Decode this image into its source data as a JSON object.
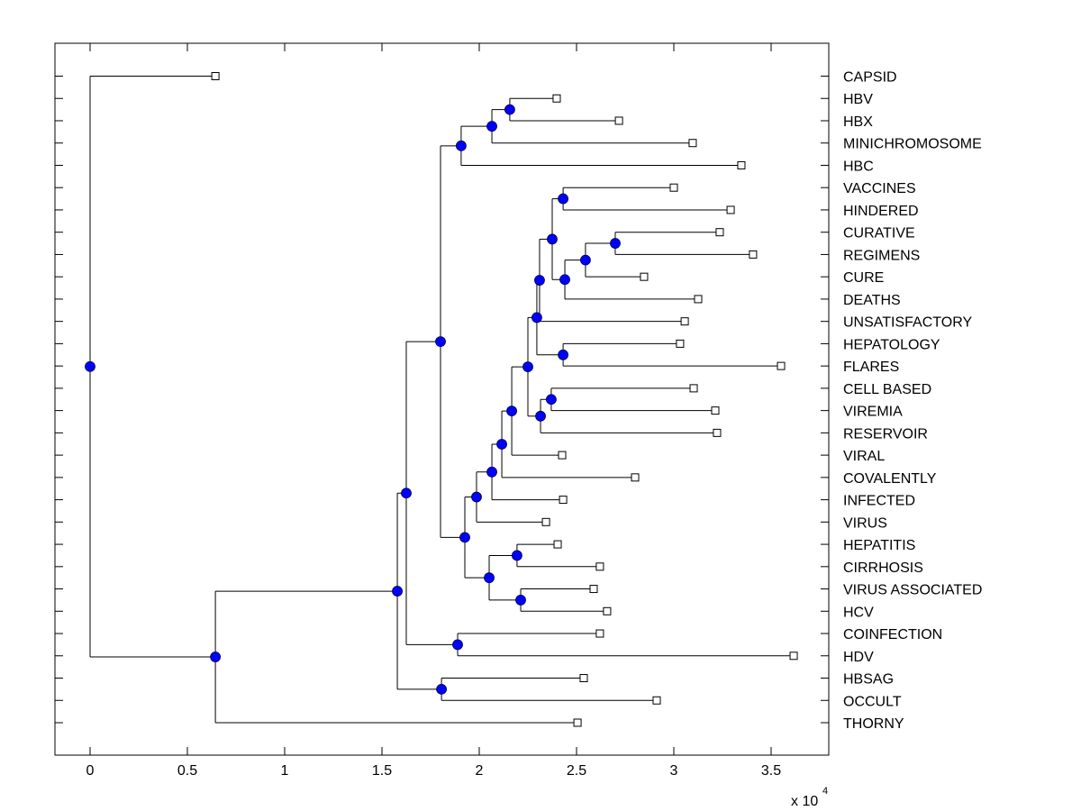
{
  "chart_data": {
    "type": "dendrogram",
    "title": "",
    "xlabel": "",
    "ylabel": "",
    "x_multiplier_label": "x 10",
    "x_multiplier_exponent": "4",
    "xlim": [
      -0.18,
      3.81
    ],
    "xticks": [
      0,
      0.5,
      1,
      1.5,
      2,
      2.5,
      3,
      3.5
    ],
    "xtick_labels": [
      "0",
      "0.5",
      "1",
      "1.5",
      "2",
      "2.5",
      "3",
      "3.5"
    ],
    "grid": false,
    "node_color": "#0000ff",
    "leaf_marker": "open-square",
    "leaves": [
      {
        "label": "CAPSID",
        "x": 0.644
      },
      {
        "label": "HBV",
        "x": 2.398
      },
      {
        "label": "HBX",
        "x": 2.718
      },
      {
        "label": "MINICHROMOSOME",
        "x": 3.097
      },
      {
        "label": "HBC",
        "x": 3.347
      },
      {
        "label": "VACCINES",
        "x": 3.0
      },
      {
        "label": "HINDERED",
        "x": 3.292
      },
      {
        "label": "CURATIVE",
        "x": 3.236
      },
      {
        "label": "REGIMENS",
        "x": 3.407
      },
      {
        "label": "CURE",
        "x": 2.847
      },
      {
        "label": "DEATHS",
        "x": 3.125
      },
      {
        "label": "UNSATISFACTORY",
        "x": 3.056
      },
      {
        "label": "HEPATOLOGY",
        "x": 3.032
      },
      {
        "label": "FLARES",
        "x": 3.551
      },
      {
        "label": "CELL BASED",
        "x": 3.102
      },
      {
        "label": "VIREMIA",
        "x": 3.213
      },
      {
        "label": "RESERVOIR",
        "x": 3.222
      },
      {
        "label": "VIRAL",
        "x": 2.426
      },
      {
        "label": "COVALENTLY",
        "x": 2.801
      },
      {
        "label": "INFECTED",
        "x": 2.431
      },
      {
        "label": "VIRUS",
        "x": 2.343
      },
      {
        "label": "HEPATITIS",
        "x": 2.403
      },
      {
        "label": "CIRRHOSIS",
        "x": 2.62
      },
      {
        "label": "VIRUS ASSOCIATED",
        "x": 2.588
      },
      {
        "label": "HCV",
        "x": 2.657
      },
      {
        "label": "COINFECTION",
        "x": 2.62
      },
      {
        "label": "HDV",
        "x": 3.616
      },
      {
        "label": "HBSAG",
        "x": 2.537
      },
      {
        "label": "OCCULT",
        "x": 2.912
      },
      {
        "label": "THORNY",
        "x": 2.505
      }
    ],
    "nodes": [
      {
        "id": "n_hbv_hbx",
        "x": 2.157,
        "children": [
          "L1",
          "L2"
        ]
      },
      {
        "id": "n_mini",
        "x": 2.065,
        "children": [
          "n_hbv_hbx",
          "L3"
        ]
      },
      {
        "id": "n_hbc",
        "x": 1.907,
        "children": [
          "n_mini",
          "L4"
        ]
      },
      {
        "id": "n_vacc",
        "x": 2.431,
        "children": [
          "L5",
          "L6"
        ]
      },
      {
        "id": "n_cur_reg",
        "x": 2.699,
        "children": [
          "L7",
          "L8"
        ]
      },
      {
        "id": "n_cure",
        "x": 2.546,
        "children": [
          "n_cur_reg",
          "L9"
        ]
      },
      {
        "id": "n_deaths",
        "x": 2.44,
        "children": [
          "n_cure",
          "L10"
        ]
      },
      {
        "id": "n_top",
        "x": 2.375,
        "children": [
          "n_vacc",
          "n_deaths"
        ]
      },
      {
        "id": "n_unsat",
        "x": 2.31,
        "children": [
          "n_top",
          "L11"
        ]
      },
      {
        "id": "n_hep_fl",
        "x": 2.431,
        "children": [
          "L12",
          "L13"
        ]
      },
      {
        "id": "n_upper",
        "x": 2.296,
        "children": [
          "n_unsat",
          "n_hep_fl"
        ]
      },
      {
        "id": "n_cell_vir",
        "x": 2.37,
        "children": [
          "L14",
          "L15"
        ]
      },
      {
        "id": "n_reservoir",
        "x": 2.315,
        "children": [
          "n_cell_vir",
          "L16"
        ]
      },
      {
        "id": "n_f",
        "x": 2.25,
        "children": [
          "n_upper",
          "n_reservoir"
        ]
      },
      {
        "id": "n_viral",
        "x": 2.167,
        "children": [
          "n_f",
          "L17"
        ]
      },
      {
        "id": "n_coval",
        "x": 2.116,
        "children": [
          "n_viral",
          "L18"
        ]
      },
      {
        "id": "n_infected",
        "x": 2.065,
        "children": [
          "n_coval",
          "L19"
        ]
      },
      {
        "id": "n_virus",
        "x": 1.986,
        "children": [
          "n_infected",
          "L20"
        ]
      },
      {
        "id": "n_hep_cir",
        "x": 2.194,
        "children": [
          "L21",
          "L22"
        ]
      },
      {
        "id": "n_va_hcv",
        "x": 2.213,
        "children": [
          "L23",
          "L24"
        ]
      },
      {
        "id": "n_hcv_grp",
        "x": 2.051,
        "children": [
          "n_hep_cir",
          "n_va_hcv"
        ]
      },
      {
        "id": "n_k",
        "x": 1.926,
        "children": [
          "n_virus",
          "n_hcv_grp"
        ]
      },
      {
        "id": "n_m",
        "x": 1.801,
        "children": [
          "n_hbc",
          "n_k"
        ]
      },
      {
        "id": "n_coinf_hdv",
        "x": 1.889,
        "children": [
          "L25",
          "L26"
        ]
      },
      {
        "id": "n_o",
        "x": 1.625,
        "children": [
          "n_m",
          "n_coinf_hdv"
        ]
      },
      {
        "id": "n_hbsag_occ",
        "x": 1.806,
        "children": [
          "L27",
          "L28"
        ]
      },
      {
        "id": "n_q",
        "x": 1.579,
        "children": [
          "n_o",
          "n_hbsag_occ"
        ]
      },
      {
        "id": "n_r",
        "x": 0.644,
        "children": [
          "n_q",
          "L29"
        ]
      },
      {
        "id": "n_root",
        "x": 0,
        "children": [
          "L0",
          "n_r"
        ]
      }
    ]
  }
}
